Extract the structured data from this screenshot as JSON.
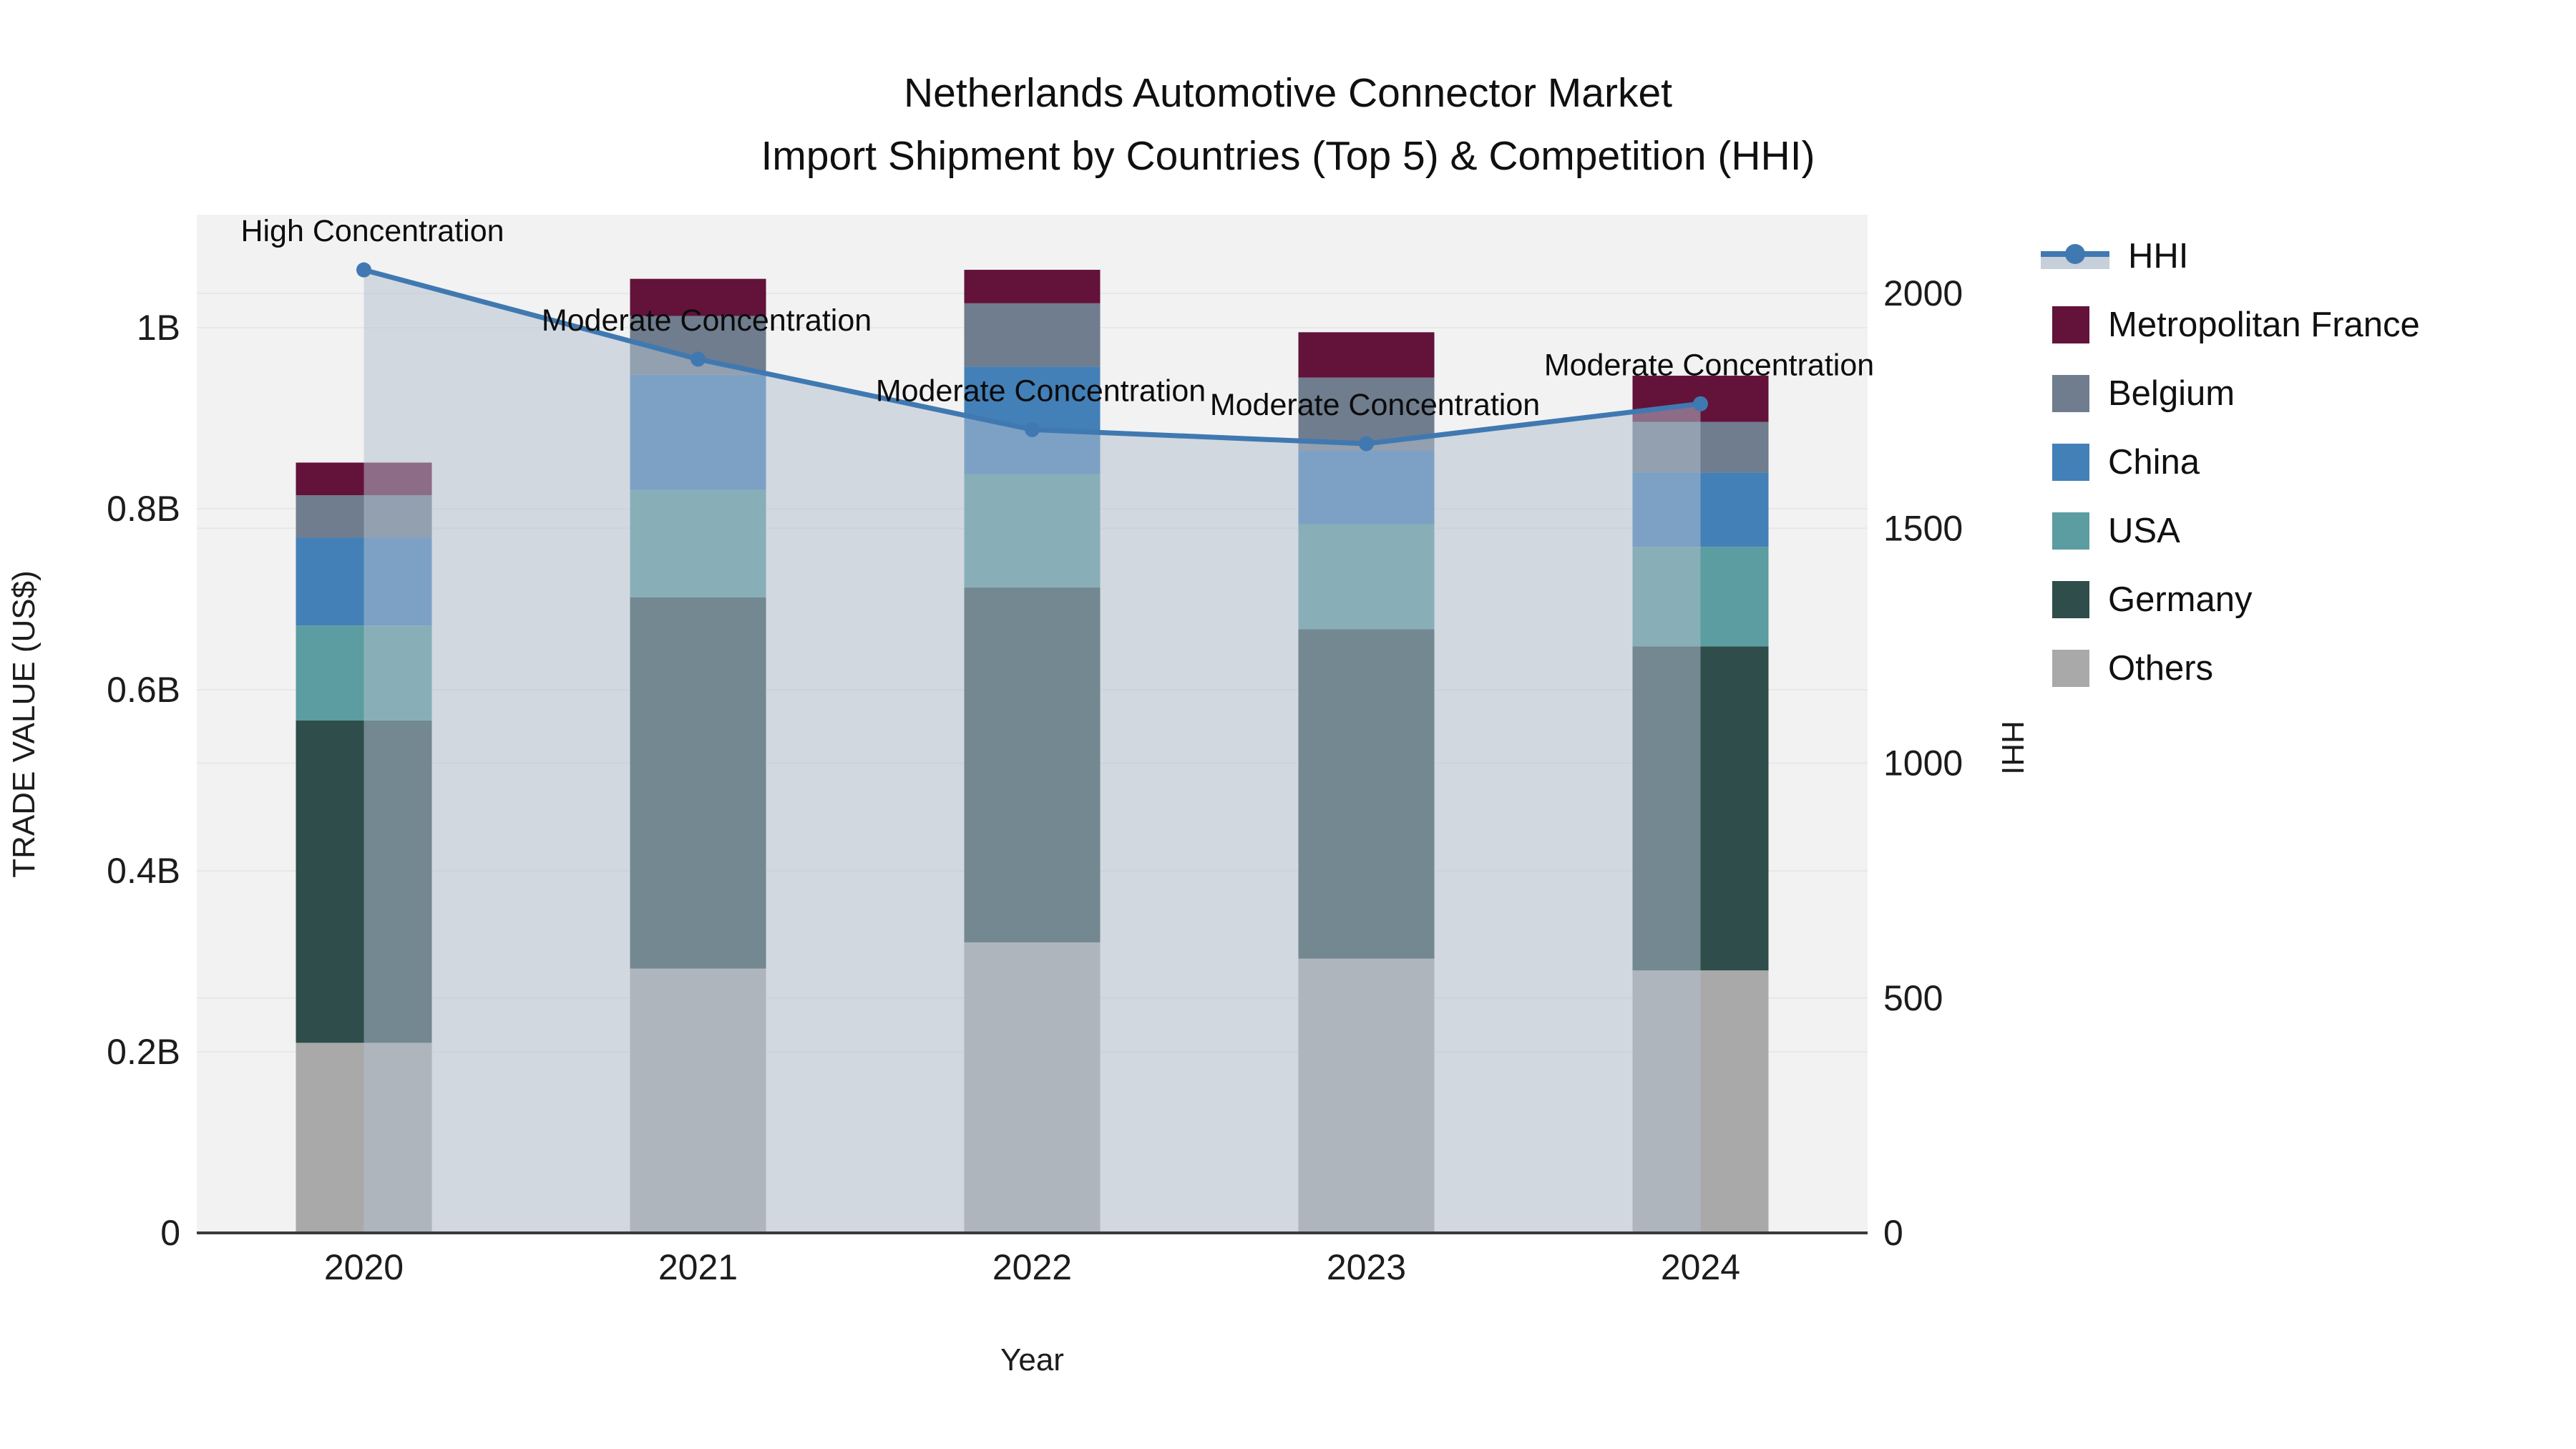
{
  "title": {
    "line1": "Netherlands Automotive Connector Market",
    "line2": "Import Shipment by Countries (Top 5) & Competition (HHI)"
  },
  "legend": {
    "items": [
      {
        "id": "hhi",
        "label": "HHI",
        "symbol": "line",
        "color": "#4079b1"
      },
      {
        "id": "metropolitan-france",
        "label": "Metropolitan France",
        "symbol": "square",
        "color": "#63123a"
      },
      {
        "id": "belgium",
        "label": "Belgium",
        "symbol": "square",
        "color": "#6f7d8e"
      },
      {
        "id": "china",
        "label": "China",
        "symbol": "square",
        "color": "#4380b8"
      },
      {
        "id": "usa",
        "label": "USA",
        "symbol": "square",
        "color": "#5b9da0"
      },
      {
        "id": "germany",
        "label": "Germany",
        "symbol": "square",
        "color": "#2e4d4b"
      },
      {
        "id": "others",
        "label": "Others",
        "symbol": "square",
        "color": "#a9a9a9"
      }
    ]
  },
  "chart_data": {
    "type": "bar",
    "subtype": "stacked-bar-with-line",
    "title": "Netherlands Automotive Connector Market / Import Shipment by Countries (Top 5) & Competition (HHI)",
    "categories": [
      "2020",
      "2021",
      "2022",
      "2023",
      "2024"
    ],
    "values_unit": "billion US$",
    "series": [
      {
        "name": "Others",
        "color": "#a9a9a9",
        "values": [
          0.21,
          0.292,
          0.321,
          0.303,
          0.29
        ]
      },
      {
        "name": "Germany",
        "color": "#2e4d4b",
        "values": [
          0.356,
          0.41,
          0.392,
          0.364,
          0.358
        ]
      },
      {
        "name": "USA",
        "color": "#5b9da0",
        "values": [
          0.105,
          0.119,
          0.125,
          0.116,
          0.11
        ]
      },
      {
        "name": "China",
        "color": "#4380b8",
        "values": [
          0.097,
          0.127,
          0.119,
          0.081,
          0.082
        ]
      },
      {
        "name": "Belgium",
        "color": "#6f7d8e",
        "values": [
          0.047,
          0.065,
          0.07,
          0.081,
          0.056
        ]
      },
      {
        "name": "Metropolitan France",
        "color": "#63123a",
        "values": [
          0.036,
          0.041,
          0.037,
          0.05,
          0.051
        ]
      }
    ],
    "bar_totals": [
      0.851,
      1.054,
      1.064,
      0.995,
      0.947
    ],
    "line_series": {
      "name": "HHI",
      "axis": "right",
      "color": "#4079b1",
      "area_fill": "rgba(178,191,208,0.52)",
      "values": [
        2050,
        1860,
        1710,
        1680,
        1765
      ]
    },
    "annotations": [
      {
        "category": "2020",
        "text": "High Concentration"
      },
      {
        "category": "2021",
        "text": "Moderate Concentration"
      },
      {
        "category": "2022",
        "text": "Moderate Concentration"
      },
      {
        "category": "2023",
        "text": "Moderate Concentration"
      },
      {
        "category": "2024",
        "text": "Moderate Concentration"
      }
    ],
    "left_axis": {
      "title": "TRADE VALUE (US$)",
      "range": [
        0,
        1.125
      ],
      "ticks": [
        {
          "label": "0",
          "value": 0.0
        },
        {
          "label": "0.2B",
          "value": 0.2
        },
        {
          "label": "0.4B",
          "value": 0.4
        },
        {
          "label": "0.6B",
          "value": 0.6
        },
        {
          "label": "0.8B",
          "value": 0.8
        },
        {
          "label": "1B",
          "value": 1.0
        }
      ]
    },
    "right_axis": {
      "title": "HHI",
      "range": [
        0,
        2167
      ],
      "ticks": [
        {
          "label": "0",
          "value": 0
        },
        {
          "label": "500",
          "value": 500
        },
        {
          "label": "1000",
          "value": 1000
        },
        {
          "label": "1500",
          "value": 1500
        },
        {
          "label": "2000",
          "value": 2000
        }
      ]
    },
    "x_axis": {
      "title": "Year",
      "labels": [
        "2020",
        "2021",
        "2022",
        "2023",
        "2024"
      ]
    },
    "grid": true,
    "legend_position": "right",
    "plot_background": "#f2f2f2"
  }
}
